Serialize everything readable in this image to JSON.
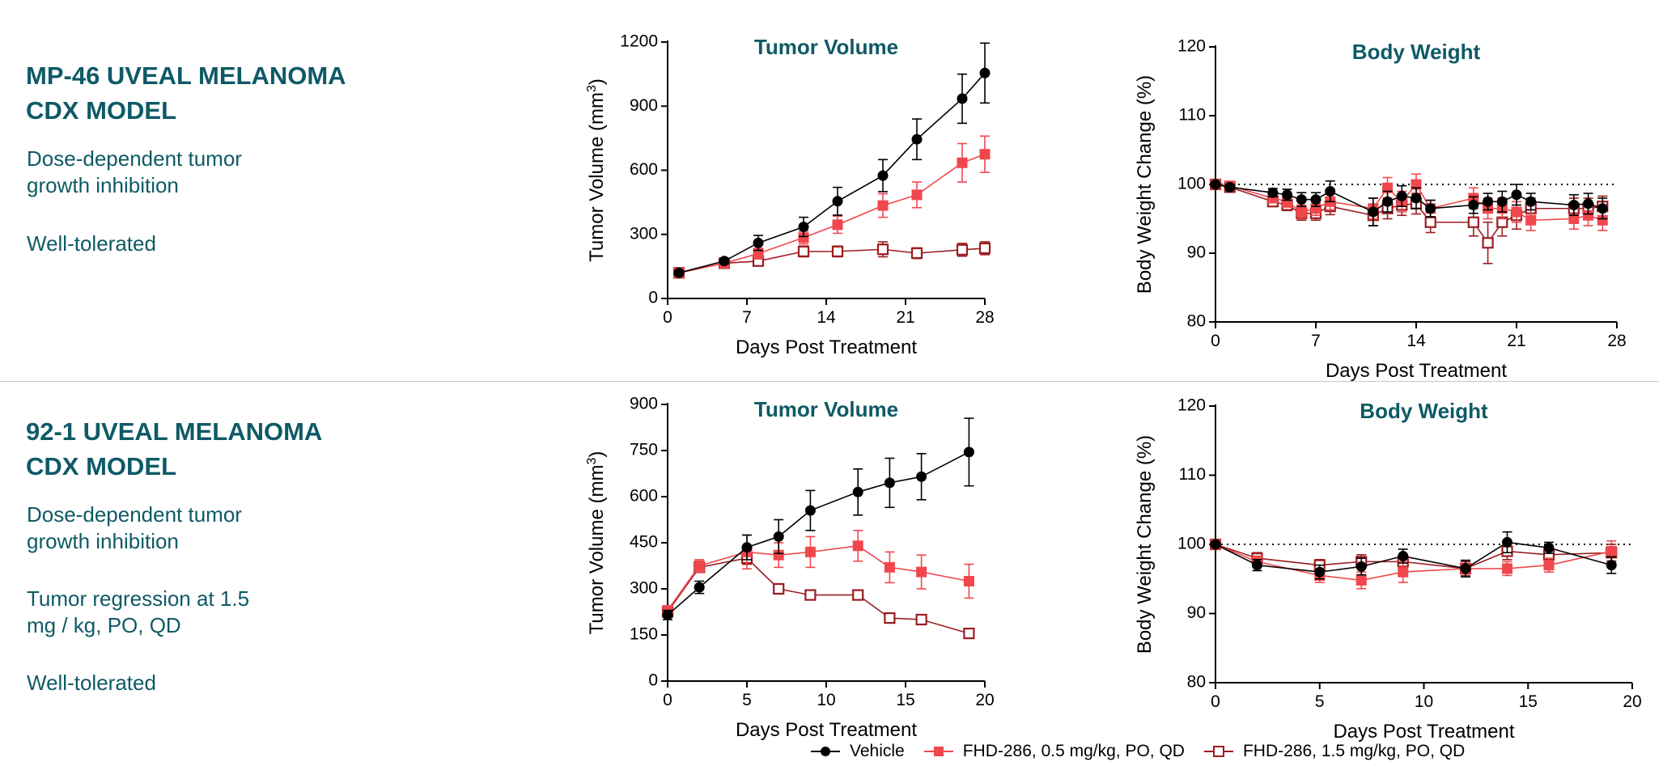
{
  "colors": {
    "vehicle": "#000000",
    "low_dose": "#f0474d",
    "high_dose": "#9b1c20",
    "title": "#0e5a66"
  },
  "panels": [
    {
      "title_line1": "MP-46 UVEAL MELANOMA",
      "title_line2": "CDX MODEL",
      "desc1_line1": "Dose-dependent tumor",
      "desc1_line2": "growth inhibition",
      "desc2_line1": "Well-tolerated",
      "desc2_line2": "",
      "desc3_line1": ""
    },
    {
      "title_line1": "92-1 UVEAL MELANOMA",
      "title_line2": "CDX MODEL",
      "desc1_line1": "Dose-dependent tumor",
      "desc1_line2": "growth inhibition",
      "desc2_line1": "Tumor regression at 1.5",
      "desc2_line2": "mg / kg, PO, QD",
      "desc3_line1": "Well-tolerated"
    }
  ],
  "legend": {
    "vehicle": "Vehicle",
    "low_dose": "FHD-286, 0.5 mg/kg, PO, QD",
    "high_dose": "FHD-286, 1.5 mg/kg, PO, QD"
  },
  "chart_data": [
    {
      "type": "line",
      "title": "Tumor Volume",
      "xlabel": "Days Post Treatment",
      "ylabel": "Tumor Volume (mm3)",
      "xlim": [
        0,
        28
      ],
      "xticks": [
        0,
        7,
        14,
        21,
        28
      ],
      "ylim": [
        0,
        1200
      ],
      "yticks": [
        0,
        300,
        600,
        900,
        1200
      ],
      "series": [
        {
          "name": "Vehicle",
          "color": "vehicle",
          "marker": "circle",
          "x": [
            1,
            5,
            8,
            12,
            15,
            19,
            22,
            26,
            28
          ],
          "y": [
            120,
            175,
            260,
            335,
            455,
            575,
            745,
            935,
            1055
          ],
          "err": [
            10,
            12,
            35,
            45,
            65,
            75,
            95,
            115,
            140
          ]
        },
        {
          "name": "FHD-286, 0.5 mg/kg, PO, QD",
          "color": "low_dose",
          "marker": "square-filled",
          "x": [
            1,
            5,
            8,
            12,
            15,
            19,
            22,
            26,
            28
          ],
          "y": [
            120,
            165,
            210,
            285,
            345,
            435,
            485,
            635,
            675
          ],
          "err": [
            10,
            12,
            25,
            30,
            40,
            55,
            60,
            90,
            85
          ]
        },
        {
          "name": "FHD-286, 1.5 mg/kg, PO, QD",
          "color": "high_dose",
          "marker": "square-open",
          "x": [
            1,
            5,
            8,
            12,
            15,
            19,
            22,
            26,
            28
          ],
          "y": [
            120,
            165,
            175,
            220,
            220,
            230,
            212,
            228,
            235
          ],
          "err": [
            10,
            12,
            15,
            25,
            25,
            35,
            25,
            30,
            30
          ]
        }
      ]
    },
    {
      "type": "line",
      "title": "Body Weight",
      "xlabel": "Days Post Treatment",
      "ylabel": "Body Weight Change (%)",
      "xlim": [
        0,
        28
      ],
      "xticks": [
        0,
        7,
        14,
        21,
        28
      ],
      "ylim": [
        80,
        120
      ],
      "yticks": [
        80,
        90,
        100,
        110,
        120
      ],
      "reference_line": 100,
      "series": [
        {
          "name": "Vehicle",
          "color": "vehicle",
          "marker": "circle",
          "x": [
            0,
            1,
            4,
            5,
            6,
            7,
            8,
            11,
            12,
            13,
            14,
            15,
            18,
            19,
            20,
            21,
            22,
            25,
            26,
            27
          ],
          "y": [
            100,
            99.6,
            98.8,
            98.5,
            97.8,
            97.8,
            99.0,
            96.0,
            97.5,
            98.3,
            98.0,
            96.5,
            97.0,
            97.5,
            97.5,
            98.5,
            97.5,
            97.0,
            97.2,
            96.5
          ],
          "err": [
            0.3,
            0.4,
            0.6,
            0.8,
            1.0,
            1.0,
            1.5,
            2.0,
            1.5,
            1.5,
            1.5,
            1.2,
            1.2,
            1.2,
            1.5,
            1.5,
            1.2,
            1.5,
            1.5,
            1.5
          ]
        },
        {
          "name": "FHD-286, 0.5 mg/kg, PO, QD",
          "color": "low_dose",
          "marker": "square-filled",
          "x": [
            0,
            1,
            4,
            5,
            6,
            7,
            8,
            11,
            12,
            13,
            14,
            15,
            18,
            19,
            20,
            21,
            22,
            25,
            26,
            27
          ],
          "y": [
            100,
            99.8,
            98.0,
            97.5,
            96.0,
            96.5,
            97.5,
            96.5,
            99.5,
            97.5,
            100.0,
            96.5,
            98.0,
            96.5,
            96.5,
            96.0,
            94.8,
            95.0,
            95.5,
            94.8
          ],
          "err": [
            0.3,
            0.4,
            0.6,
            0.8,
            1.0,
            1.0,
            1.2,
            1.5,
            1.5,
            1.5,
            1.5,
            1.2,
            1.5,
            1.5,
            1.5,
            1.5,
            1.5,
            1.5,
            1.5,
            1.5
          ]
        },
        {
          "name": "FHD-286, 1.5 mg/kg, PO, QD",
          "color": "high_dose",
          "marker": "square-open",
          "x": [
            0,
            1,
            4,
            5,
            6,
            7,
            8,
            11,
            12,
            13,
            14,
            15,
            18,
            19,
            20,
            21,
            22,
            25,
            26,
            27
          ],
          "y": [
            100,
            99.6,
            97.5,
            97.0,
            95.8,
            95.8,
            96.8,
            95.5,
            96.5,
            97.0,
            97.2,
            94.5,
            94.5,
            91.5,
            94.5,
            95.5,
            96.5,
            96.5,
            96.5,
            96.8
          ],
          "err": [
            0.3,
            0.4,
            0.6,
            0.8,
            1.0,
            1.0,
            1.2,
            1.5,
            1.5,
            1.5,
            1.5,
            1.5,
            2.0,
            3.0,
            2.0,
            2.0,
            1.5,
            1.5,
            1.5,
            1.5
          ]
        }
      ]
    },
    {
      "type": "line",
      "title": "Tumor Volume",
      "xlabel": "Days Post Treatment",
      "ylabel": "Tumor Volume (mm3)",
      "xlim": [
        0,
        20
      ],
      "xticks": [
        0,
        5,
        10,
        15,
        20
      ],
      "ylim": [
        0,
        900
      ],
      "yticks": [
        0,
        150,
        300,
        450,
        600,
        750,
        900
      ],
      "series": [
        {
          "name": "Vehicle",
          "color": "vehicle",
          "marker": "circle",
          "x": [
            0,
            2,
            5,
            7,
            9,
            12,
            14,
            16,
            19
          ],
          "y": [
            215,
            305,
            435,
            470,
            555,
            615,
            645,
            665,
            745
          ],
          "err": [
            15,
            20,
            40,
            55,
            65,
            75,
            80,
            75,
            110
          ]
        },
        {
          "name": "FHD-286, 0.5 mg/kg, PO, QD",
          "color": "low_dose",
          "marker": "square-filled",
          "x": [
            0,
            2,
            5,
            7,
            9,
            12,
            14,
            16,
            19
          ],
          "y": [
            230,
            375,
            420,
            410,
            420,
            440,
            370,
            355,
            325
          ],
          "err": [
            15,
            20,
            55,
            40,
            50,
            50,
            50,
            55,
            55
          ]
        },
        {
          "name": "FHD-286, 1.5 mg/kg, PO, QD",
          "color": "high_dose",
          "marker": "square-open",
          "x": [
            0,
            2,
            5,
            7,
            9,
            12,
            14,
            16,
            19
          ],
          "y": [
            225,
            370,
            400,
            300,
            280,
            280,
            205,
            200,
            155
          ],
          "err": [
            15,
            15,
            20,
            15,
            15,
            15,
            12,
            12,
            12
          ]
        }
      ]
    },
    {
      "type": "line",
      "title": "Body Weight",
      "xlabel": "Days Post Treatment",
      "ylabel": "Body Weight Change (%)",
      "xlim": [
        0,
        20
      ],
      "xticks": [
        0,
        5,
        10,
        15,
        20
      ],
      "ylim": [
        80,
        120
      ],
      "yticks": [
        80,
        90,
        100,
        110,
        120
      ],
      "reference_line": 100,
      "series": [
        {
          "name": "Vehicle",
          "color": "vehicle",
          "marker": "circle",
          "x": [
            0,
            2,
            5,
            7,
            9,
            12,
            14,
            16,
            19
          ],
          "y": [
            100,
            97.0,
            96.0,
            96.8,
            98.3,
            96.5,
            100.3,
            99.5,
            97.0
          ],
          "err": [
            0.3,
            0.8,
            1.0,
            1.2,
            1.0,
            1.2,
            1.5,
            0.8,
            1.2
          ]
        },
        {
          "name": "FHD-286, 0.5 mg/kg, PO, QD",
          "color": "low_dose",
          "marker": "square-filled",
          "x": [
            0,
            2,
            5,
            7,
            9,
            12,
            14,
            16,
            19
          ],
          "y": [
            100,
            97.5,
            95.5,
            94.8,
            96.0,
            96.5,
            96.5,
            97.0,
            99.0
          ],
          "err": [
            0.3,
            0.8,
            1.0,
            1.2,
            1.5,
            1.2,
            1.0,
            1.0,
            1.5
          ]
        },
        {
          "name": "FHD-286, 1.5 mg/kg, PO, QD",
          "color": "high_dose",
          "marker": "square-open",
          "x": [
            0,
            2,
            5,
            7,
            9,
            12,
            14,
            16,
            19
          ],
          "y": [
            100,
            98.0,
            97.0,
            97.5,
            97.5,
            96.5,
            99.0,
            98.5,
            98.8
          ],
          "err": [
            0.3,
            0.8,
            0.8,
            1.0,
            1.0,
            1.0,
            1.2,
            1.0,
            1.2
          ]
        }
      ]
    }
  ]
}
